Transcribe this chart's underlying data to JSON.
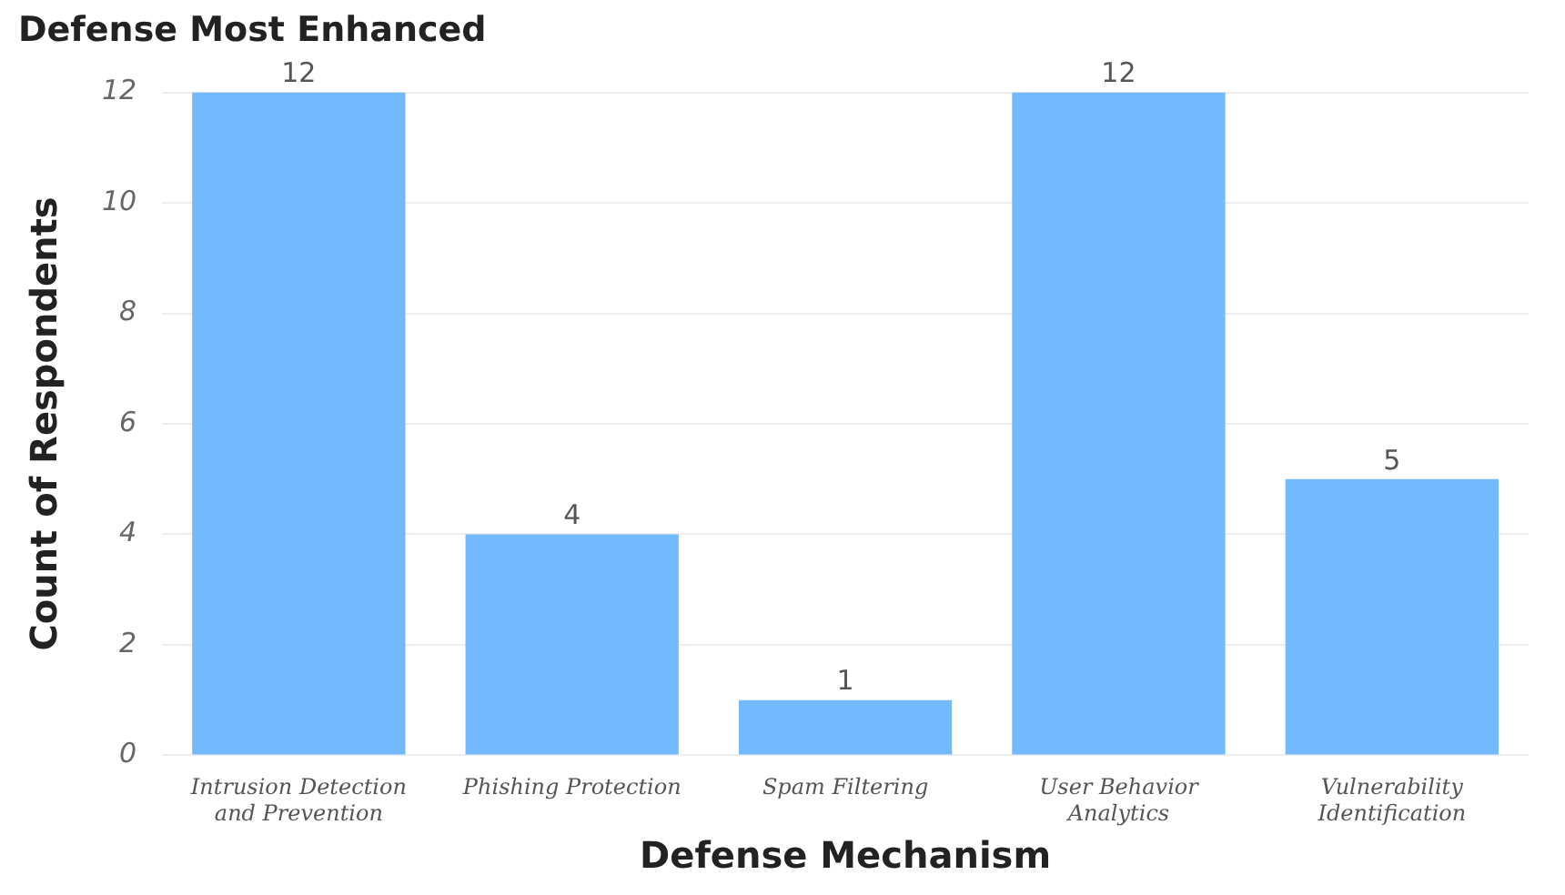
{
  "chart_data": {
    "type": "bar",
    "title": "Defense Most Enhanced",
    "xlabel": "Defense Mechanism",
    "ylabel": "Count of Respondents",
    "categories": [
      "Intrusion Detection and Prevention",
      "Phishing Protection",
      "Spam Filtering",
      "User Behavior Analytics",
      "Vulnerability Identification"
    ],
    "values": [
      12,
      4,
      1,
      12,
      5
    ],
    "color": "#73b9fd",
    "ylim": [
      0,
      12
    ],
    "yticks": [
      0,
      2,
      4,
      6,
      8,
      10,
      12
    ],
    "grid": "y",
    "legend": false,
    "data_labels": true
  }
}
